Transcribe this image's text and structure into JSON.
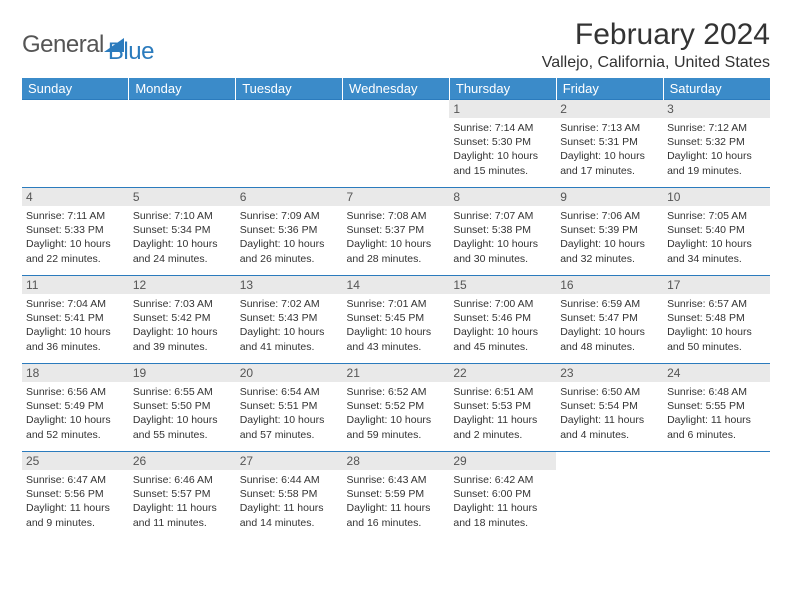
{
  "logo": {
    "text1": "General",
    "text2": "Blue"
  },
  "title": "February 2024",
  "location": "Vallejo, California, United States",
  "colors": {
    "header_bg": "#3b8bc9",
    "header_text": "#ffffff",
    "border": "#2b7bbd",
    "daynum_bg": "#e9e9e9",
    "body_text": "#333333"
  },
  "weekdays": [
    "Sunday",
    "Monday",
    "Tuesday",
    "Wednesday",
    "Thursday",
    "Friday",
    "Saturday"
  ],
  "weeks": [
    [
      null,
      null,
      null,
      null,
      {
        "n": "1",
        "sr": "Sunrise: 7:14 AM",
        "ss": "Sunset: 5:30 PM",
        "dl": "Daylight: 10 hours and 15 minutes."
      },
      {
        "n": "2",
        "sr": "Sunrise: 7:13 AM",
        "ss": "Sunset: 5:31 PM",
        "dl": "Daylight: 10 hours and 17 minutes."
      },
      {
        "n": "3",
        "sr": "Sunrise: 7:12 AM",
        "ss": "Sunset: 5:32 PM",
        "dl": "Daylight: 10 hours and 19 minutes."
      }
    ],
    [
      {
        "n": "4",
        "sr": "Sunrise: 7:11 AM",
        "ss": "Sunset: 5:33 PM",
        "dl": "Daylight: 10 hours and 22 minutes."
      },
      {
        "n": "5",
        "sr": "Sunrise: 7:10 AM",
        "ss": "Sunset: 5:34 PM",
        "dl": "Daylight: 10 hours and 24 minutes."
      },
      {
        "n": "6",
        "sr": "Sunrise: 7:09 AM",
        "ss": "Sunset: 5:36 PM",
        "dl": "Daylight: 10 hours and 26 minutes."
      },
      {
        "n": "7",
        "sr": "Sunrise: 7:08 AM",
        "ss": "Sunset: 5:37 PM",
        "dl": "Daylight: 10 hours and 28 minutes."
      },
      {
        "n": "8",
        "sr": "Sunrise: 7:07 AM",
        "ss": "Sunset: 5:38 PM",
        "dl": "Daylight: 10 hours and 30 minutes."
      },
      {
        "n": "9",
        "sr": "Sunrise: 7:06 AM",
        "ss": "Sunset: 5:39 PM",
        "dl": "Daylight: 10 hours and 32 minutes."
      },
      {
        "n": "10",
        "sr": "Sunrise: 7:05 AM",
        "ss": "Sunset: 5:40 PM",
        "dl": "Daylight: 10 hours and 34 minutes."
      }
    ],
    [
      {
        "n": "11",
        "sr": "Sunrise: 7:04 AM",
        "ss": "Sunset: 5:41 PM",
        "dl": "Daylight: 10 hours and 36 minutes."
      },
      {
        "n": "12",
        "sr": "Sunrise: 7:03 AM",
        "ss": "Sunset: 5:42 PM",
        "dl": "Daylight: 10 hours and 39 minutes."
      },
      {
        "n": "13",
        "sr": "Sunrise: 7:02 AM",
        "ss": "Sunset: 5:43 PM",
        "dl": "Daylight: 10 hours and 41 minutes."
      },
      {
        "n": "14",
        "sr": "Sunrise: 7:01 AM",
        "ss": "Sunset: 5:45 PM",
        "dl": "Daylight: 10 hours and 43 minutes."
      },
      {
        "n": "15",
        "sr": "Sunrise: 7:00 AM",
        "ss": "Sunset: 5:46 PM",
        "dl": "Daylight: 10 hours and 45 minutes."
      },
      {
        "n": "16",
        "sr": "Sunrise: 6:59 AM",
        "ss": "Sunset: 5:47 PM",
        "dl": "Daylight: 10 hours and 48 minutes."
      },
      {
        "n": "17",
        "sr": "Sunrise: 6:57 AM",
        "ss": "Sunset: 5:48 PM",
        "dl": "Daylight: 10 hours and 50 minutes."
      }
    ],
    [
      {
        "n": "18",
        "sr": "Sunrise: 6:56 AM",
        "ss": "Sunset: 5:49 PM",
        "dl": "Daylight: 10 hours and 52 minutes."
      },
      {
        "n": "19",
        "sr": "Sunrise: 6:55 AM",
        "ss": "Sunset: 5:50 PM",
        "dl": "Daylight: 10 hours and 55 minutes."
      },
      {
        "n": "20",
        "sr": "Sunrise: 6:54 AM",
        "ss": "Sunset: 5:51 PM",
        "dl": "Daylight: 10 hours and 57 minutes."
      },
      {
        "n": "21",
        "sr": "Sunrise: 6:52 AM",
        "ss": "Sunset: 5:52 PM",
        "dl": "Daylight: 10 hours and 59 minutes."
      },
      {
        "n": "22",
        "sr": "Sunrise: 6:51 AM",
        "ss": "Sunset: 5:53 PM",
        "dl": "Daylight: 11 hours and 2 minutes."
      },
      {
        "n": "23",
        "sr": "Sunrise: 6:50 AM",
        "ss": "Sunset: 5:54 PM",
        "dl": "Daylight: 11 hours and 4 minutes."
      },
      {
        "n": "24",
        "sr": "Sunrise: 6:48 AM",
        "ss": "Sunset: 5:55 PM",
        "dl": "Daylight: 11 hours and 6 minutes."
      }
    ],
    [
      {
        "n": "25",
        "sr": "Sunrise: 6:47 AM",
        "ss": "Sunset: 5:56 PM",
        "dl": "Daylight: 11 hours and 9 minutes."
      },
      {
        "n": "26",
        "sr": "Sunrise: 6:46 AM",
        "ss": "Sunset: 5:57 PM",
        "dl": "Daylight: 11 hours and 11 minutes."
      },
      {
        "n": "27",
        "sr": "Sunrise: 6:44 AM",
        "ss": "Sunset: 5:58 PM",
        "dl": "Daylight: 11 hours and 14 minutes."
      },
      {
        "n": "28",
        "sr": "Sunrise: 6:43 AM",
        "ss": "Sunset: 5:59 PM",
        "dl": "Daylight: 11 hours and 16 minutes."
      },
      {
        "n": "29",
        "sr": "Sunrise: 6:42 AM",
        "ss": "Sunset: 6:00 PM",
        "dl": "Daylight: 11 hours and 18 minutes."
      },
      null,
      null
    ]
  ]
}
